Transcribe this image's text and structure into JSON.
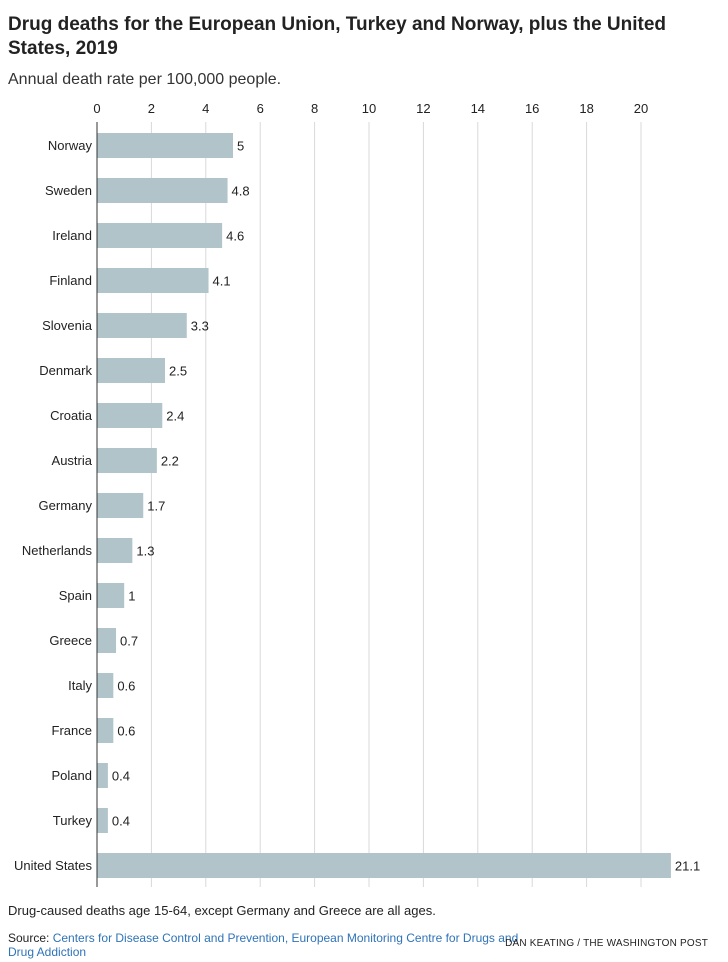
{
  "title": "Drug deaths for the European Union, Turkey and Norway, plus the United States, 2019",
  "subtitle": "Annual death rate per 100,000 people.",
  "note": "Drug-caused deaths age 15-64, except Germany and Greece are all ages.",
  "source": {
    "label": "Source: ",
    "text": "Centers for Disease Control and Prevention, European Monitoring Centre for Drugs and Drug Addiction"
  },
  "credit": "DAN KEATING / THE WASHINGTON POST",
  "colors": {
    "bar": "#b0c4ca",
    "grid": "#d9d9d9",
    "axis": "#333333",
    "link": "#2f73b8"
  },
  "chart_data": {
    "type": "bar",
    "orientation": "horizontal",
    "categories": [
      "Norway",
      "Sweden",
      "Ireland",
      "Finland",
      "Slovenia",
      "Denmark",
      "Croatia",
      "Austria",
      "Germany",
      "Netherlands",
      "Spain",
      "Greece",
      "Italy",
      "France",
      "Poland",
      "Turkey",
      "United States"
    ],
    "values": [
      5,
      4.8,
      4.6,
      4.1,
      3.3,
      2.5,
      2.4,
      2.2,
      1.7,
      1.3,
      1,
      0.7,
      0.6,
      0.6,
      0.4,
      0.4,
      21.1
    ],
    "value_labels": [
      "5",
      "4.8",
      "4.6",
      "4.1",
      "3.3",
      "2.5",
      "2.4",
      "2.2",
      "1.7",
      "1.3",
      "1",
      "0.7",
      "0.6",
      "0.6",
      "0.4",
      "0.4",
      "21.1"
    ],
    "xticks": [
      0,
      2,
      4,
      6,
      8,
      10,
      12,
      14,
      16,
      18,
      20
    ],
    "xtick_labels": [
      "0",
      "2",
      "4",
      "6",
      "8",
      "10",
      "12",
      "14",
      "16",
      "18",
      "20"
    ],
    "xlim": [
      0,
      21.1
    ],
    "xaxis_position": "top",
    "grid": true
  }
}
